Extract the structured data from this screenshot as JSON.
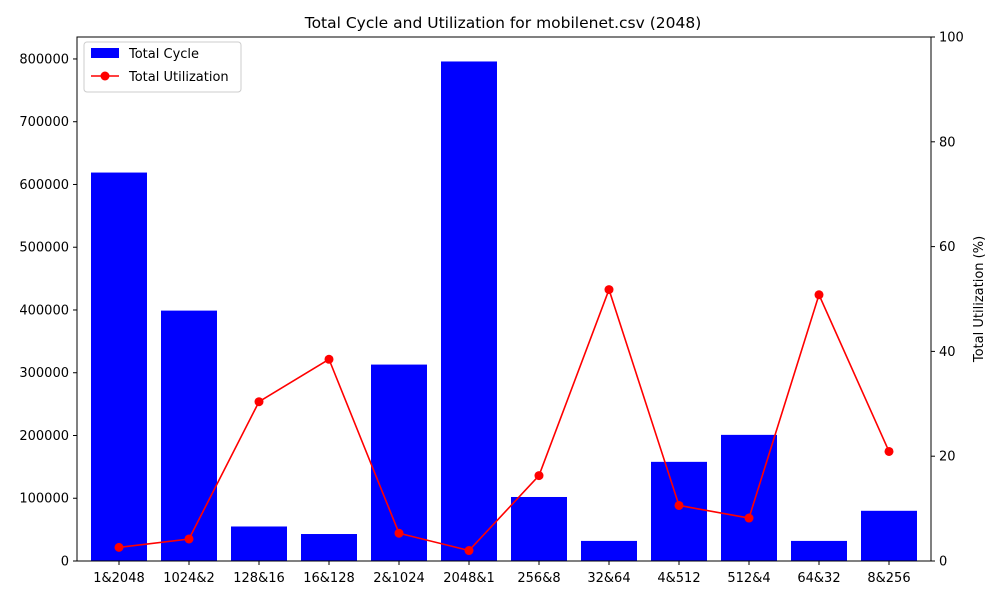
{
  "chart_data": {
    "type": "bar+line",
    "title": "Total Cycle and Utilization for mobilenet.csv (2048)",
    "xlabel": "",
    "ylabel_left": "",
    "ylabel_right": "Total Utilization (%)",
    "categories": [
      "1&2048",
      "1024&2",
      "128&16",
      "16&128",
      "2&1024",
      "2048&1",
      "256&8",
      "32&64",
      "4&512",
      "512&4",
      "64&32",
      "8&256"
    ],
    "series": [
      {
        "name": "Total Cycle",
        "type": "bar",
        "axis": "left",
        "color": "#0000ff",
        "values": [
          619000,
          399000,
          55000,
          43000,
          313000,
          796000,
          102000,
          32000,
          158000,
          201000,
          32000,
          80000
        ]
      },
      {
        "name": "Total Utilization",
        "type": "line",
        "axis": "right",
        "color": "#ff0000",
        "values": [
          2.6,
          4.2,
          30.4,
          38.5,
          5.3,
          2.0,
          16.3,
          51.8,
          10.6,
          8.2,
          50.8,
          20.9
        ]
      }
    ],
    "ylim_left": [
      0,
      835000
    ],
    "yticks_left": [
      0,
      100000,
      200000,
      300000,
      400000,
      500000,
      600000,
      700000,
      800000
    ],
    "ylim_right": [
      0,
      100
    ],
    "yticks_right": [
      0,
      20,
      40,
      60,
      80,
      100
    ],
    "legend_position": "top-left",
    "grid": false
  }
}
